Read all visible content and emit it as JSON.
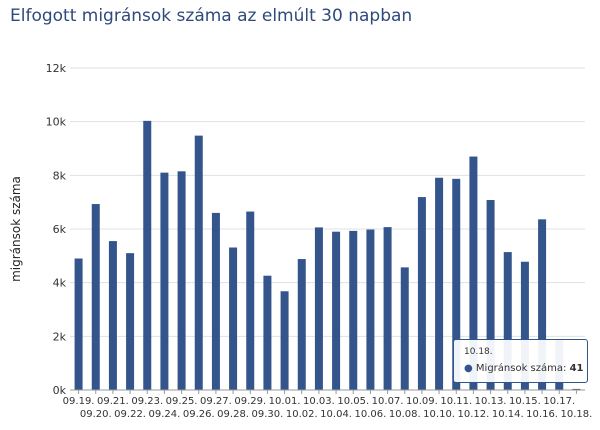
{
  "title": "Elfogott migránsok száma az elmúlt 30 napban",
  "colors": {
    "bar": "#34558b",
    "grid": "#e0e0e0",
    "axis_text": "#333333",
    "title": "#2e4a7c"
  },
  "chart_data": {
    "type": "bar",
    "title": "Elfogott migránsok száma az elmúlt 30 napban",
    "xlabel": "",
    "ylabel": "migránsok száma",
    "ylim": [
      0,
      12000
    ],
    "yticks": [
      0,
      2000,
      4000,
      6000,
      8000,
      10000,
      12000
    ],
    "ytick_labels": [
      "0k",
      "2k",
      "4k",
      "6k",
      "8k",
      "10k",
      "12k"
    ],
    "grid": true,
    "categories": [
      "09.19.",
      "09.20.",
      "09.21.",
      "09.22.",
      "09.23.",
      "09.24.",
      "09.25.",
      "09.26.",
      "09.27.",
      "09.28.",
      "09.29.",
      "09.30.",
      "10.01.",
      "10.02.",
      "10.03.",
      "10.04.",
      "10.05.",
      "10.06.",
      "10.07.",
      "10.08.",
      "10.09.",
      "10.10.",
      "10.11.",
      "10.12.",
      "10.13.",
      "10.14.",
      "10.15.",
      "10.16.",
      "10.17.",
      "10.18."
    ],
    "series": [
      {
        "name": "Migránsok száma",
        "values": [
          4900,
          6930,
          5550,
          5100,
          10030,
          8100,
          8150,
          9480,
          6600,
          5310,
          6650,
          4260,
          3680,
          4880,
          6060,
          5900,
          5930,
          5980,
          6070,
          4570,
          7190,
          7910,
          7870,
          8700,
          7080,
          5140,
          4780,
          6360,
          1900,
          41
        ]
      }
    ]
  },
  "tooltip": {
    "date": "10.18.",
    "series": "Migránsok száma",
    "value": "41"
  }
}
